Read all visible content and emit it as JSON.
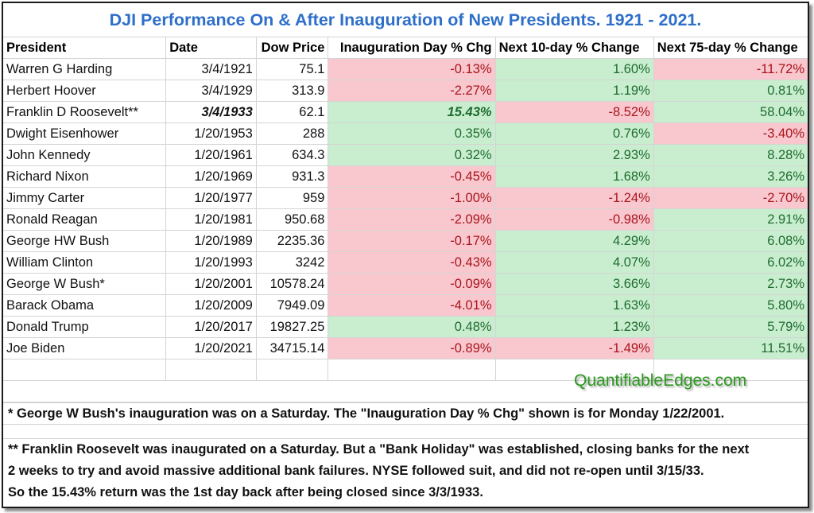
{
  "title": "DJI Performance On & After Inauguration of New Presidents. 1921 - 2021.",
  "columns": [
    "President",
    "Date",
    "Dow Price",
    "Inauguration Day % Chg",
    "Next 10-day % Change",
    "Next 75-day % Change"
  ],
  "rows": [
    {
      "president": "Warren G Harding",
      "date": "3/4/1921",
      "price": "75.1",
      "inaug": "-0.13%",
      "d10": "1.60%",
      "d75": "-11.72%"
    },
    {
      "president": "Herbert Hoover",
      "date": "3/4/1929",
      "price": "313.9",
      "inaug": "-2.27%",
      "d10": "1.19%",
      "d75": "0.81%"
    },
    {
      "president": "Franklin D Roosevelt**",
      "date": "3/4/1933",
      "price": "62.1",
      "inaug": "15.43%",
      "d10": "-8.52%",
      "d75": "58.04%"
    },
    {
      "president": "Dwight Eisenhower",
      "date": "1/20/1953",
      "price": "288",
      "inaug": "0.35%",
      "d10": "0.76%",
      "d75": "-3.40%"
    },
    {
      "president": "John Kennedy",
      "date": "1/20/1961",
      "price": "634.3",
      "inaug": "0.32%",
      "d10": "2.93%",
      "d75": "8.28%"
    },
    {
      "president": "Richard Nixon",
      "date": "1/20/1969",
      "price": "931.3",
      "inaug": "-0.45%",
      "d10": "1.68%",
      "d75": "3.26%"
    },
    {
      "president": "Jimmy Carter",
      "date": "1/20/1977",
      "price": "959",
      "inaug": "-1.00%",
      "d10": "-1.24%",
      "d75": "-2.70%"
    },
    {
      "president": "Ronald Reagan",
      "date": "1/20/1981",
      "price": "950.68",
      "inaug": "-2.09%",
      "d10": "-0.98%",
      "d75": "2.91%"
    },
    {
      "president": "George HW Bush",
      "date": "1/20/1989",
      "price": "2235.36",
      "inaug": "-0.17%",
      "d10": "4.29%",
      "d75": "6.08%"
    },
    {
      "president": "William Clinton",
      "date": "1/20/1993",
      "price": "3242",
      "inaug": "-0.43%",
      "d10": "4.07%",
      "d75": "6.02%"
    },
    {
      "president": "George W Bush*",
      "date": "1/20/2001",
      "price": "10578.24",
      "inaug": "-0.09%",
      "d10": "3.66%",
      "d75": "2.73%"
    },
    {
      "president": "Barack Obama",
      "date": "1/20/2009",
      "price": "7949.09",
      "inaug": "-4.01%",
      "d10": "1.63%",
      "d75": "5.80%"
    },
    {
      "president": "Donald Trump",
      "date": "1/20/2017",
      "price": "19827.25",
      "inaug": "0.48%",
      "d10": "1.23%",
      "d75": "5.79%"
    },
    {
      "president": "Joe Biden",
      "date": "1/20/2021",
      "price": "34715.14",
      "inaug": "-0.89%",
      "d10": "-1.49%",
      "d75": "11.51%"
    }
  ],
  "brand": "QuantifiableEdges.com",
  "footnote1": "* George W Bush's inauguration was on a Saturday. The \"Inauguration Day % Chg\" shown is for Monday 1/22/2001.",
  "footnote2_lines": [
    "** Franklin Roosevelt was inaugurated on a Saturday. But a \"Bank Holiday\" was established, closing banks for the next",
    "2 weeks to try and avoid massive additional bank failures. NYSE followed suit, and did not re-open until 3/15/33.",
    "So the 15.43% return was the 1st day back after being closed since 3/3/1933."
  ],
  "colors": {
    "negative_fill": "#f9c7ce",
    "negative_text": "#a8141c",
    "positive_fill": "#c9eecf",
    "positive_text": "#1e6b2e",
    "title": "#2e6fc9",
    "brand": "#2b9a1e"
  }
}
